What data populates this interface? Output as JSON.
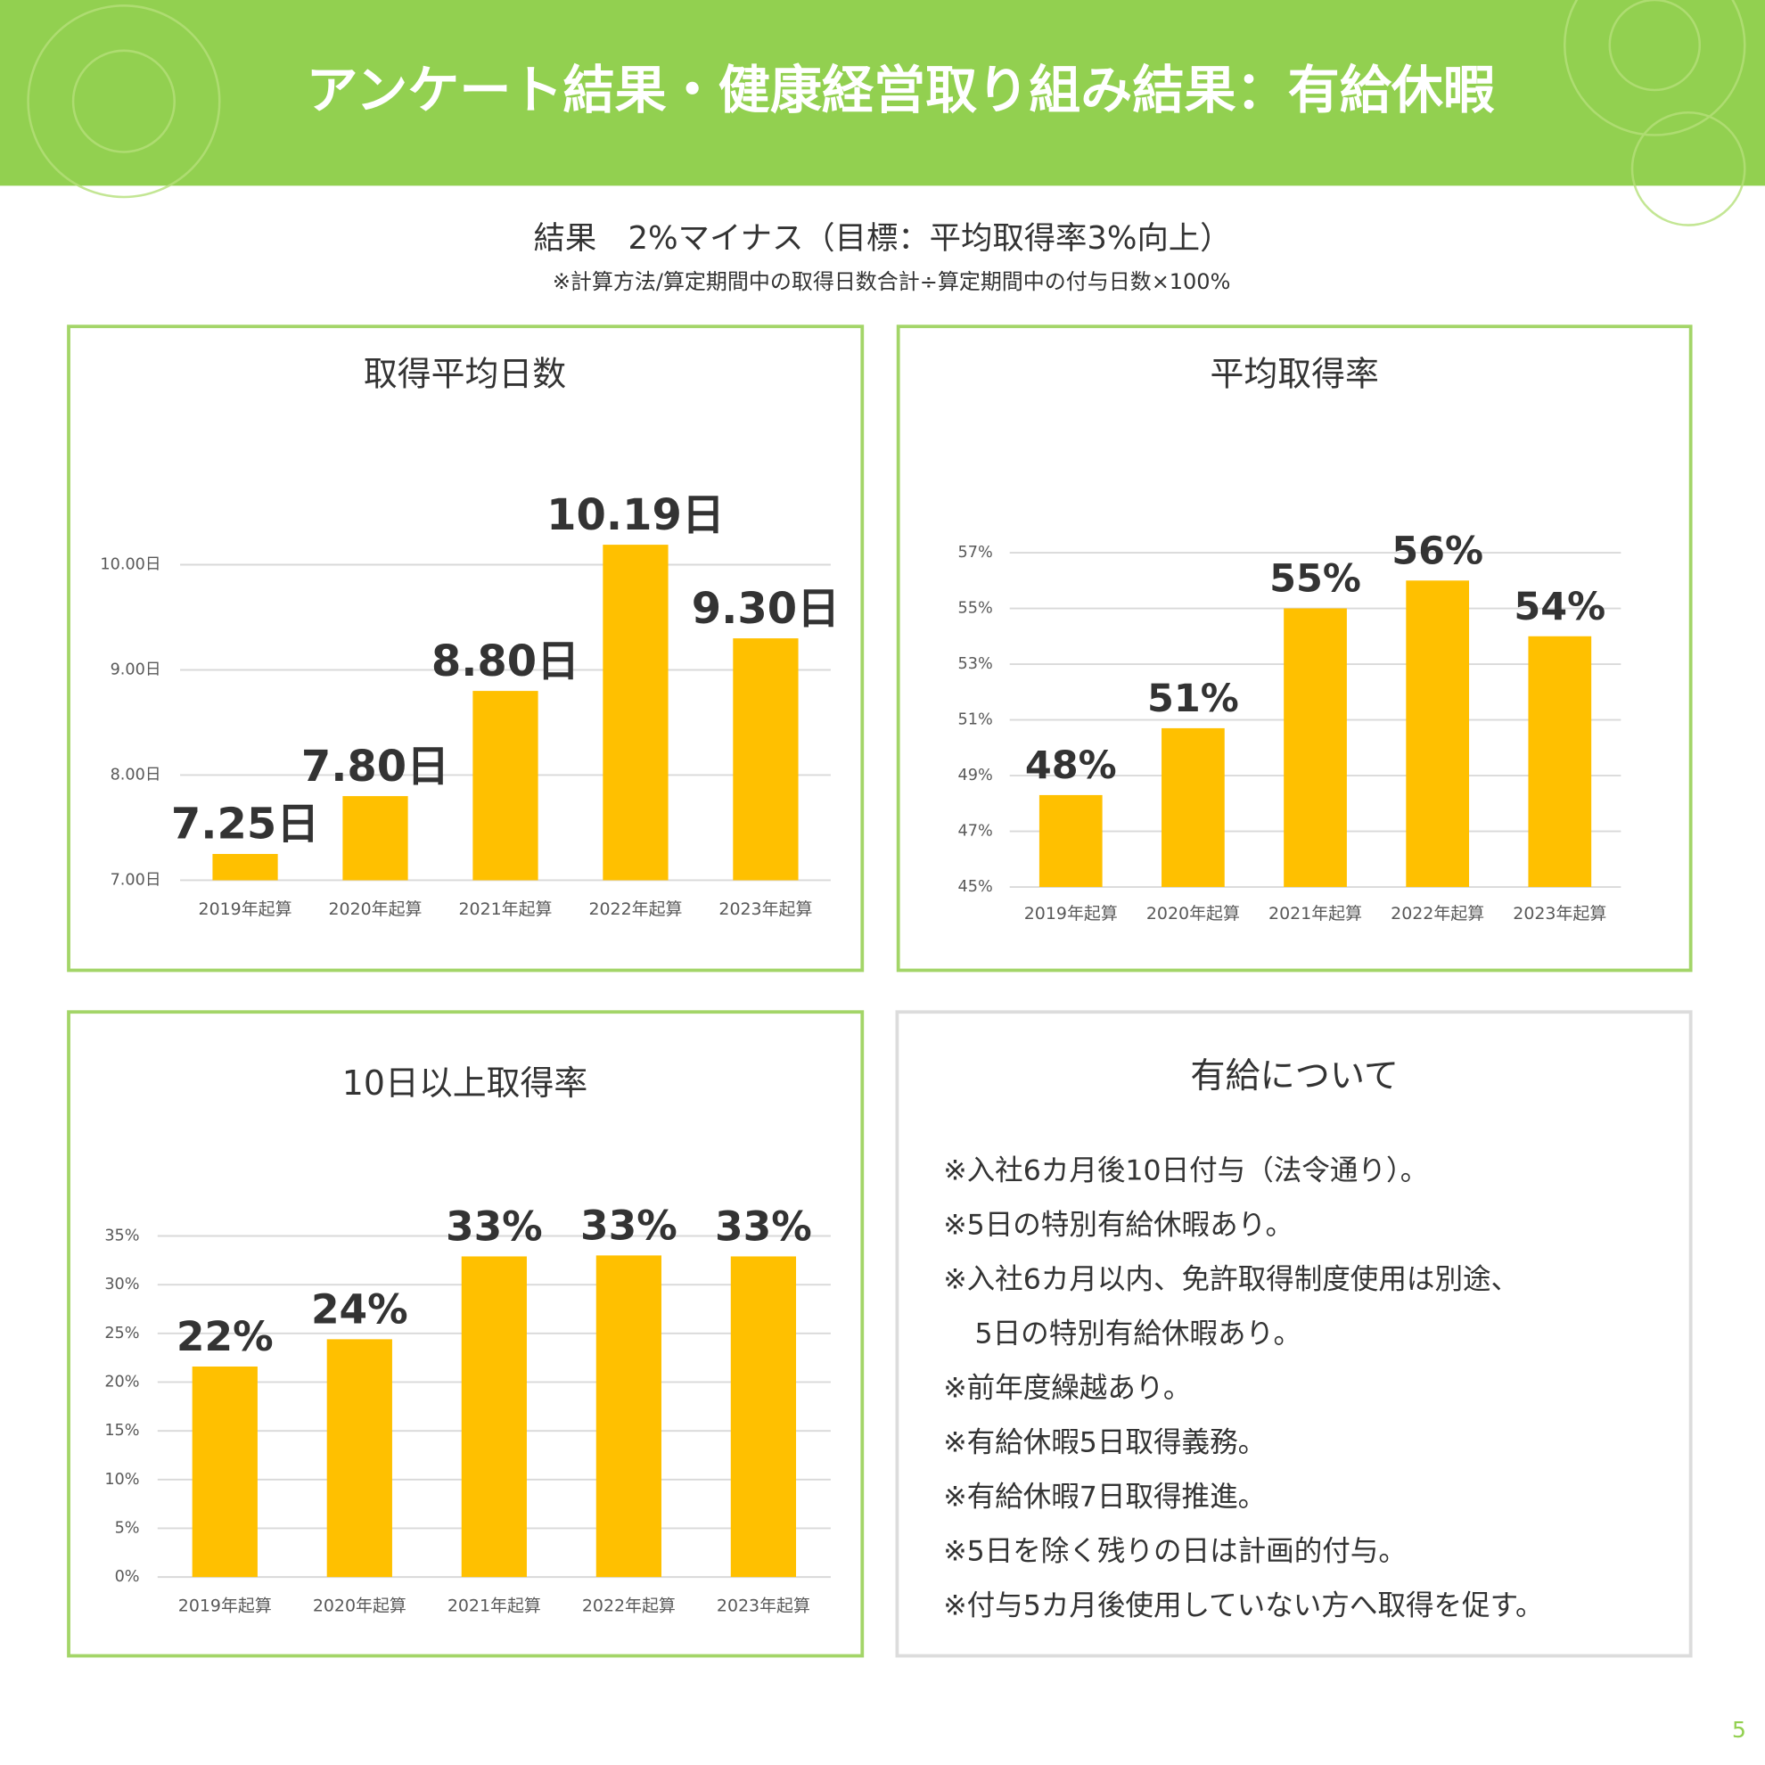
{
  "header": {
    "title": "アンケート結果・健康経営取り組み結果：有給休暇"
  },
  "summary": {
    "result": "結果　2%マイナス（目標：平均取得率3%向上）",
    "note": "※計算方法/算定期間中の取得日数合計÷算定期間中の付与日数×100%"
  },
  "chart_data": [
    {
      "type": "bar",
      "title": "取得平均日数",
      "color": "#ffc000",
      "grid": true,
      "categories": [
        "2019年起算",
        "2020年起算",
        "2021年起算",
        "2022年起算",
        "2023年起算"
      ],
      "values": [
        7.25,
        7.8,
        8.8,
        10.19,
        9.3
      ],
      "value_labels": [
        "7.25日",
        "7.80日",
        "8.80日",
        "10.19日",
        "9.30日"
      ],
      "ylim": [
        7,
        10.2
      ],
      "yticks": [
        {
          "value": 7,
          "label": "7.00日"
        },
        {
          "value": 8,
          "label": "8.00日"
        },
        {
          "value": 9,
          "label": "9.00日"
        },
        {
          "value": 10,
          "label": "10.00日"
        }
      ]
    },
    {
      "type": "bar",
      "title": "平均取得率",
      "color": "#ffc000",
      "grid": true,
      "categories": [
        "2019年起算",
        "2020年起算",
        "2021年起算",
        "2022年起算",
        "2023年起算"
      ],
      "values": [
        48.3,
        50.7,
        55,
        56,
        54
      ],
      "value_labels": [
        "48%",
        "51%",
        "55%",
        "56%",
        "54%"
      ],
      "ylim": [
        45,
        57
      ],
      "yticks": [
        {
          "value": 45,
          "label": "45%"
        },
        {
          "value": 47,
          "label": "47%"
        },
        {
          "value": 49,
          "label": "49%"
        },
        {
          "value": 51,
          "label": "51%"
        },
        {
          "value": 53,
          "label": "53%"
        },
        {
          "value": 55,
          "label": "55%"
        },
        {
          "value": 57,
          "label": "57%"
        }
      ]
    },
    {
      "type": "bar",
      "title": "10日以上取得率",
      "color": "#ffc000",
      "grid": true,
      "categories": [
        "2019年起算",
        "2020年起算",
        "2021年起算",
        "2022年起算",
        "2023年起算"
      ],
      "values": [
        21.6,
        24.4,
        32.9,
        33,
        32.9
      ],
      "value_labels": [
        "22%",
        "24%",
        "33%",
        "33%",
        "33%"
      ],
      "ylim": [
        0,
        35
      ],
      "yticks": [
        {
          "value": 0,
          "label": "0%"
        },
        {
          "value": 5,
          "label": "5%"
        },
        {
          "value": 10,
          "label": "10%"
        },
        {
          "value": 15,
          "label": "15%"
        },
        {
          "value": 20,
          "label": "20%"
        },
        {
          "value": 25,
          "label": "25%"
        },
        {
          "value": 30,
          "label": "30%"
        },
        {
          "value": 35,
          "label": "35%"
        }
      ]
    }
  ],
  "notes": {
    "title": "有給について",
    "items": [
      [
        "※入社6カ月後10日付与（法令通り）。"
      ],
      [
        "※5日の特別有給休暇あり。"
      ],
      [
        "※入社6カ月以内、免許取得制度使用は別途、",
        "5日の特別有給休暇あり。"
      ],
      [
        "※前年度繰越あり。"
      ],
      [
        "※有給休暇5日取得義務。"
      ],
      [
        "※有給休暇7日取得推進。"
      ],
      [
        "※5日を除く残りの日は計画的付与。"
      ],
      [
        "※付与5カ月後使用していない方へ取得を促す。"
      ]
    ]
  },
  "page_number": "5"
}
